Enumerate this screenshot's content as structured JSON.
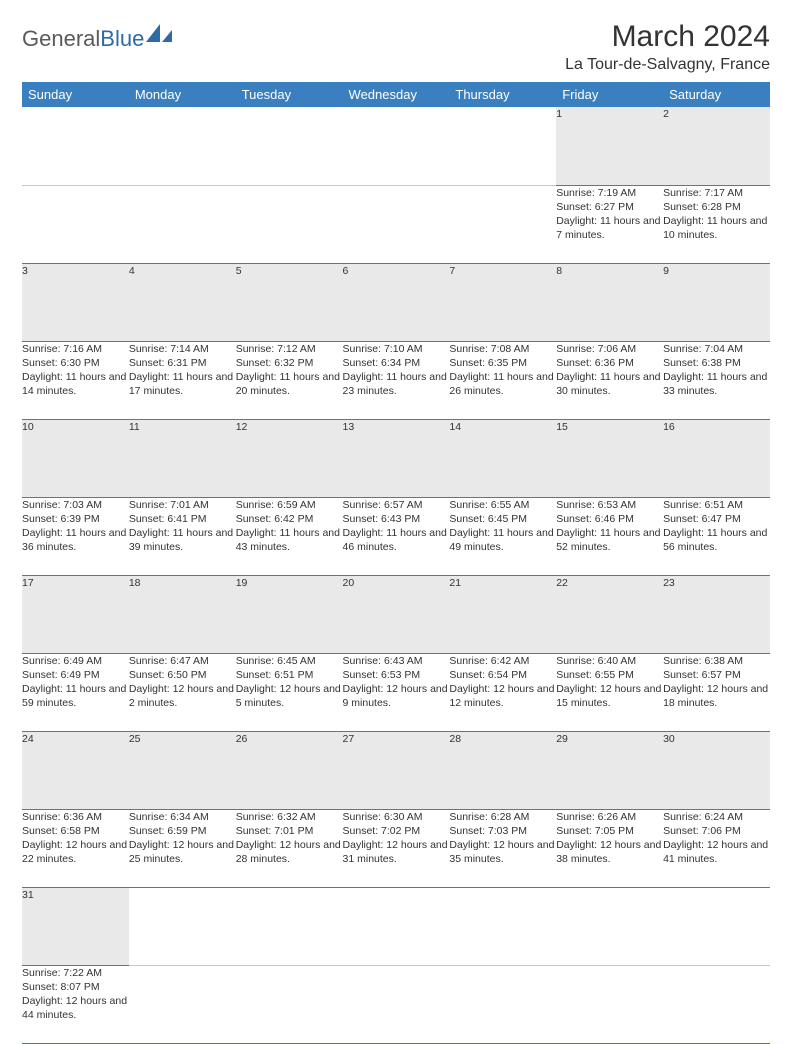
{
  "brand": {
    "part1": "General",
    "part2": "Blue"
  },
  "title": "March 2024",
  "location": "La Tour-de-Salvagny, France",
  "colors": {
    "header_bg": "#3a7fbf",
    "header_text": "#ffffff",
    "daynum_bg": "#e9e9e9",
    "rule": "#3a7fbf",
    "text": "#333333",
    "logo_blue": "#2f6aa8"
  },
  "weekdays": [
    "Sunday",
    "Monday",
    "Tuesday",
    "Wednesday",
    "Thursday",
    "Friday",
    "Saturday"
  ],
  "weeks": [
    [
      null,
      null,
      null,
      null,
      null,
      {
        "n": "1",
        "sr": "Sunrise: 7:19 AM",
        "ss": "Sunset: 6:27 PM",
        "dl": "Daylight: 11 hours and 7 minutes."
      },
      {
        "n": "2",
        "sr": "Sunrise: 7:17 AM",
        "ss": "Sunset: 6:28 PM",
        "dl": "Daylight: 11 hours and 10 minutes."
      }
    ],
    [
      {
        "n": "3",
        "sr": "Sunrise: 7:16 AM",
        "ss": "Sunset: 6:30 PM",
        "dl": "Daylight: 11 hours and 14 minutes."
      },
      {
        "n": "4",
        "sr": "Sunrise: 7:14 AM",
        "ss": "Sunset: 6:31 PM",
        "dl": "Daylight: 11 hours and 17 minutes."
      },
      {
        "n": "5",
        "sr": "Sunrise: 7:12 AM",
        "ss": "Sunset: 6:32 PM",
        "dl": "Daylight: 11 hours and 20 minutes."
      },
      {
        "n": "6",
        "sr": "Sunrise: 7:10 AM",
        "ss": "Sunset: 6:34 PM",
        "dl": "Daylight: 11 hours and 23 minutes."
      },
      {
        "n": "7",
        "sr": "Sunrise: 7:08 AM",
        "ss": "Sunset: 6:35 PM",
        "dl": "Daylight: 11 hours and 26 minutes."
      },
      {
        "n": "8",
        "sr": "Sunrise: 7:06 AM",
        "ss": "Sunset: 6:36 PM",
        "dl": "Daylight: 11 hours and 30 minutes."
      },
      {
        "n": "9",
        "sr": "Sunrise: 7:04 AM",
        "ss": "Sunset: 6:38 PM",
        "dl": "Daylight: 11 hours and 33 minutes."
      }
    ],
    [
      {
        "n": "10",
        "sr": "Sunrise: 7:03 AM",
        "ss": "Sunset: 6:39 PM",
        "dl": "Daylight: 11 hours and 36 minutes."
      },
      {
        "n": "11",
        "sr": "Sunrise: 7:01 AM",
        "ss": "Sunset: 6:41 PM",
        "dl": "Daylight: 11 hours and 39 minutes."
      },
      {
        "n": "12",
        "sr": "Sunrise: 6:59 AM",
        "ss": "Sunset: 6:42 PM",
        "dl": "Daylight: 11 hours and 43 minutes."
      },
      {
        "n": "13",
        "sr": "Sunrise: 6:57 AM",
        "ss": "Sunset: 6:43 PM",
        "dl": "Daylight: 11 hours and 46 minutes."
      },
      {
        "n": "14",
        "sr": "Sunrise: 6:55 AM",
        "ss": "Sunset: 6:45 PM",
        "dl": "Daylight: 11 hours and 49 minutes."
      },
      {
        "n": "15",
        "sr": "Sunrise: 6:53 AM",
        "ss": "Sunset: 6:46 PM",
        "dl": "Daylight: 11 hours and 52 minutes."
      },
      {
        "n": "16",
        "sr": "Sunrise: 6:51 AM",
        "ss": "Sunset: 6:47 PM",
        "dl": "Daylight: 11 hours and 56 minutes."
      }
    ],
    [
      {
        "n": "17",
        "sr": "Sunrise: 6:49 AM",
        "ss": "Sunset: 6:49 PM",
        "dl": "Daylight: 11 hours and 59 minutes."
      },
      {
        "n": "18",
        "sr": "Sunrise: 6:47 AM",
        "ss": "Sunset: 6:50 PM",
        "dl": "Daylight: 12 hours and 2 minutes."
      },
      {
        "n": "19",
        "sr": "Sunrise: 6:45 AM",
        "ss": "Sunset: 6:51 PM",
        "dl": "Daylight: 12 hours and 5 minutes."
      },
      {
        "n": "20",
        "sr": "Sunrise: 6:43 AM",
        "ss": "Sunset: 6:53 PM",
        "dl": "Daylight: 12 hours and 9 minutes."
      },
      {
        "n": "21",
        "sr": "Sunrise: 6:42 AM",
        "ss": "Sunset: 6:54 PM",
        "dl": "Daylight: 12 hours and 12 minutes."
      },
      {
        "n": "22",
        "sr": "Sunrise: 6:40 AM",
        "ss": "Sunset: 6:55 PM",
        "dl": "Daylight: 12 hours and 15 minutes."
      },
      {
        "n": "23",
        "sr": "Sunrise: 6:38 AM",
        "ss": "Sunset: 6:57 PM",
        "dl": "Daylight: 12 hours and 18 minutes."
      }
    ],
    [
      {
        "n": "24",
        "sr": "Sunrise: 6:36 AM",
        "ss": "Sunset: 6:58 PM",
        "dl": "Daylight: 12 hours and 22 minutes."
      },
      {
        "n": "25",
        "sr": "Sunrise: 6:34 AM",
        "ss": "Sunset: 6:59 PM",
        "dl": "Daylight: 12 hours and 25 minutes."
      },
      {
        "n": "26",
        "sr": "Sunrise: 6:32 AM",
        "ss": "Sunset: 7:01 PM",
        "dl": "Daylight: 12 hours and 28 minutes."
      },
      {
        "n": "27",
        "sr": "Sunrise: 6:30 AM",
        "ss": "Sunset: 7:02 PM",
        "dl": "Daylight: 12 hours and 31 minutes."
      },
      {
        "n": "28",
        "sr": "Sunrise: 6:28 AM",
        "ss": "Sunset: 7:03 PM",
        "dl": "Daylight: 12 hours and 35 minutes."
      },
      {
        "n": "29",
        "sr": "Sunrise: 6:26 AM",
        "ss": "Sunset: 7:05 PM",
        "dl": "Daylight: 12 hours and 38 minutes."
      },
      {
        "n": "30",
        "sr": "Sunrise: 6:24 AM",
        "ss": "Sunset: 7:06 PM",
        "dl": "Daylight: 12 hours and 41 minutes."
      }
    ],
    [
      {
        "n": "31",
        "sr": "Sunrise: 7:22 AM",
        "ss": "Sunset: 8:07 PM",
        "dl": "Daylight: 12 hours and 44 minutes."
      },
      null,
      null,
      null,
      null,
      null,
      null
    ]
  ]
}
